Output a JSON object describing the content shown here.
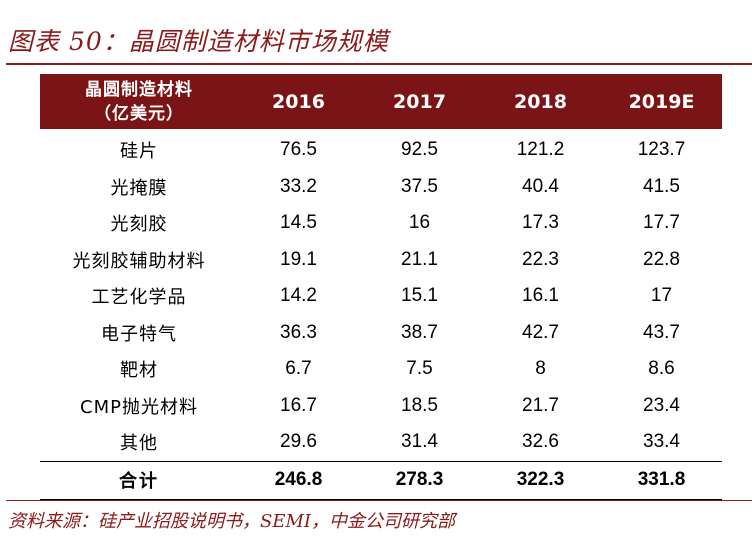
{
  "title": "图表 50：晶圆制造材料市场规模",
  "table": {
    "header_line1": "晶圆制造材料",
    "header_line2": "（亿美元）",
    "years": [
      "2016",
      "2017",
      "2018",
      "2019E"
    ],
    "rows": [
      {
        "label": "硅片",
        "values": [
          "76.5",
          "92.5",
          "121.2",
          "123.7"
        ]
      },
      {
        "label": "光掩膜",
        "values": [
          "33.2",
          "37.5",
          "40.4",
          "41.5"
        ]
      },
      {
        "label": "光刻胶",
        "values": [
          "14.5",
          "16",
          "17.3",
          "17.7"
        ]
      },
      {
        "label": "光刻胶辅助材料",
        "values": [
          "19.1",
          "21.1",
          "22.3",
          "22.8"
        ]
      },
      {
        "label": "工艺化学品",
        "values": [
          "14.2",
          "15.1",
          "16.1",
          "17"
        ]
      },
      {
        "label": "电子特气",
        "values": [
          "36.3",
          "38.7",
          "42.7",
          "43.7"
        ]
      },
      {
        "label": "靶材",
        "values": [
          "6.7",
          "7.5",
          "8",
          "8.6"
        ]
      },
      {
        "label": "CMP抛光材料",
        "values": [
          "16.7",
          "18.5",
          "21.7",
          "23.4"
        ]
      },
      {
        "label": "其他",
        "values": [
          "29.6",
          "31.4",
          "32.6",
          "33.4"
        ]
      }
    ],
    "total": {
      "label": "合计",
      "values": [
        "246.8",
        "278.3",
        "322.3",
        "331.8"
      ]
    }
  },
  "source": "资料来源：硅产业招股说明书，SEMI，中金公司研究部",
  "colors": {
    "accent": "#8b1a1a",
    "header_bg": "#7b1416"
  }
}
